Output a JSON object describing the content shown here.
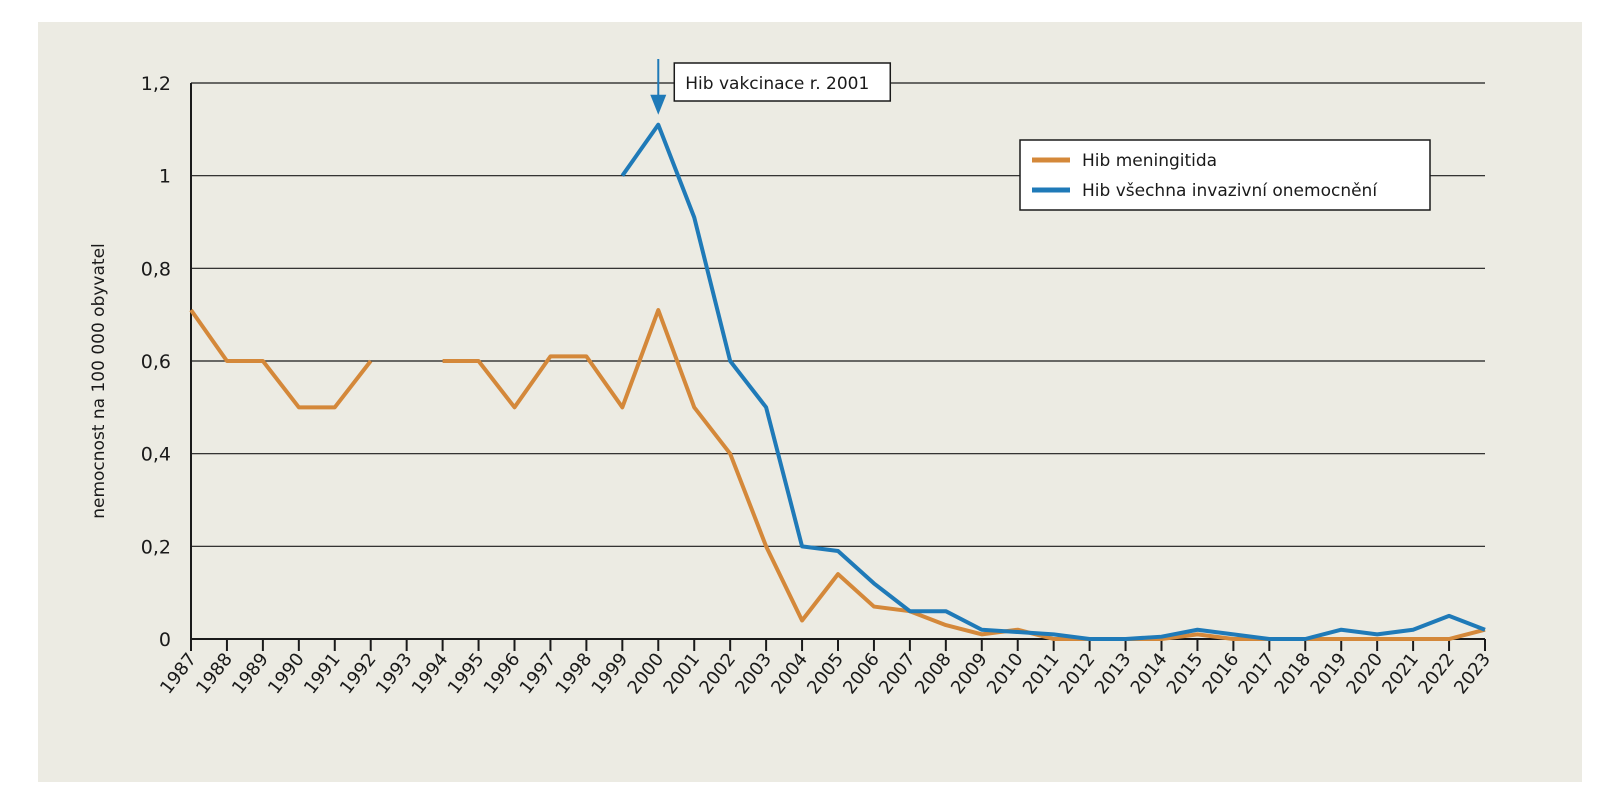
{
  "chart_data": {
    "type": "line",
    "title": "",
    "xlabel": "",
    "ylabel": "nemocnost na 100 000 obyvatel",
    "ylim": [
      0,
      1.2
    ],
    "y_ticks": [
      {
        "value": 0,
        "label": "0"
      },
      {
        "value": 0.2,
        "label": "0,2"
      },
      {
        "value": 0.4,
        "label": "0,4"
      },
      {
        "value": 0.6,
        "label": "0,6"
      },
      {
        "value": 0.8,
        "label": "0,8"
      },
      {
        "value": 1.0,
        "label": "1"
      },
      {
        "value": 1.2,
        "label": "1,2"
      }
    ],
    "grid": true,
    "legend_position": "top-right",
    "categories": [
      "1987",
      "1988",
      "1989",
      "1990",
      "1991",
      "1992",
      "1993",
      "1994",
      "1995",
      "1996",
      "1997",
      "1998",
      "1999",
      "2000",
      "2001",
      "2002",
      "2003",
      "2004",
      "2005",
      "2006",
      "2007",
      "2008",
      "2009",
      "2010",
      "2011",
      "2012",
      "2013",
      "2014",
      "2015",
      "2016",
      "2017",
      "2018",
      "2019",
      "2020",
      "2021",
      "2022",
      "2023"
    ],
    "series": [
      {
        "name": "Hib meningitida",
        "color": "#d4883a",
        "values": [
          0.71,
          0.6,
          0.6,
          0.5,
          0.5,
          0.6,
          null,
          0.6,
          0.6,
          0.5,
          0.61,
          0.61,
          0.5,
          0.71,
          0.5,
          0.4,
          0.2,
          0.04,
          0.14,
          0.07,
          0.06,
          0.03,
          0.01,
          0.02,
          0.0,
          0.0,
          0.0,
          0.0,
          0.01,
          0.0,
          0.0,
          0.0,
          0.0,
          0.0,
          0.0,
          0.0,
          0.02
        ]
      },
      {
        "name": "Hib všechna invazivní onemocnění",
        "color": "#1f7ab8",
        "values": [
          null,
          null,
          null,
          null,
          null,
          null,
          null,
          null,
          null,
          null,
          null,
          null,
          1.0,
          1.11,
          0.91,
          0.6,
          0.5,
          0.2,
          0.19,
          0.12,
          0.06,
          0.06,
          0.02,
          0.015,
          0.01,
          0.0,
          0.0,
          0.005,
          0.02,
          0.01,
          0.0,
          0.0,
          0.02,
          0.01,
          0.02,
          0.05,
          0.02
        ]
      }
    ],
    "annotations": [
      {
        "text": "Hib vakcinace r. 2001",
        "x": "2000",
        "y": 1.11
      }
    ]
  }
}
